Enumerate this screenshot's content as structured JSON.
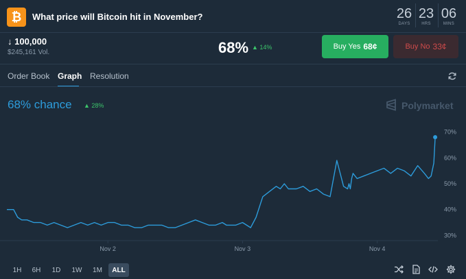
{
  "header": {
    "title": "What price will Bitcoin hit in November?",
    "logo_glyph": "₿",
    "countdown": [
      {
        "value": "26",
        "label": "DAYS"
      },
      {
        "value": "23",
        "label": "HRS"
      },
      {
        "value": "06",
        "label": "MINS"
      }
    ]
  },
  "market": {
    "target": "↓ 100,000",
    "volume": "$245,161 Vol.",
    "probability": "68%",
    "change": "▲ 14%",
    "buy_yes": {
      "label": "Buy Yes",
      "price": "68¢"
    },
    "buy_no": {
      "label": "Buy No",
      "price": "33¢"
    }
  },
  "tabs": [
    {
      "label": "Order Book"
    },
    {
      "label": "Graph",
      "active": true
    },
    {
      "label": "Resolution"
    }
  ],
  "graph": {
    "chance": "68% chance",
    "chance_change": "▲ 28%",
    "brand": "Polymarket"
  },
  "ranges": [
    "1H",
    "6H",
    "1D",
    "1W",
    "1M",
    "ALL"
  ],
  "active_range": "ALL",
  "icons": [
    "refresh-icon",
    "shuffle-icon",
    "document-icon",
    "code-icon",
    "gear-icon",
    "polymarket-logo-icon",
    "bitcoin-icon"
  ],
  "colors": {
    "accent": "#2d9cdb",
    "yes": "#27ae60",
    "no": "#cf4b4b",
    "up": "#3cc46b"
  },
  "chart_data": {
    "type": "line",
    "x_ticks": [
      "Nov 2",
      "Nov 3",
      "Nov 4"
    ],
    "y_ticks": [
      "30%",
      "40%",
      "50%",
      "60%",
      "70%"
    ],
    "ylim": [
      28,
      72
    ],
    "xlim": [
      1.25,
      4.45
    ],
    "grid": false,
    "series": [
      {
        "color": "#2d9cdb",
        "x": [
          1.25,
          1.3,
          1.33,
          1.36,
          1.4,
          1.45,
          1.5,
          1.55,
          1.6,
          1.65,
          1.7,
          1.75,
          1.8,
          1.85,
          1.9,
          1.95,
          2.0,
          2.05,
          2.1,
          2.15,
          2.2,
          2.25,
          2.3,
          2.35,
          2.4,
          2.45,
          2.5,
          2.55,
          2.6,
          2.65,
          2.7,
          2.75,
          2.8,
          2.85,
          2.88,
          2.92,
          2.95,
          3.0,
          3.03,
          3.06,
          3.1,
          3.15,
          3.2,
          3.25,
          3.28,
          3.31,
          3.34,
          3.4,
          3.45,
          3.5,
          3.55,
          3.6,
          3.65,
          3.7,
          3.75,
          3.78,
          3.79,
          3.8,
          3.81,
          3.82,
          3.85,
          3.9,
          3.95,
          4.0,
          4.05,
          4.1,
          4.15,
          4.2,
          4.25,
          4.3,
          4.35,
          4.38,
          4.4,
          4.42,
          4.43
        ],
        "y": [
          40,
          40,
          37,
          36,
          36,
          35,
          35,
          34,
          35,
          34,
          33,
          34,
          35,
          34,
          35,
          34,
          35,
          35,
          34,
          34,
          33,
          33,
          34,
          34,
          34,
          33,
          33,
          34,
          35,
          36,
          35,
          34,
          34,
          35,
          34,
          34,
          34,
          35,
          34,
          33,
          37,
          45,
          47,
          49,
          48,
          50,
          48,
          48,
          49,
          47,
          48,
          46,
          45,
          59,
          49,
          48,
          50,
          48,
          52,
          54,
          52,
          53,
          54,
          55,
          56,
          54,
          56,
          55,
          53,
          57,
          54,
          52,
          53,
          58,
          68
        ]
      }
    ]
  }
}
